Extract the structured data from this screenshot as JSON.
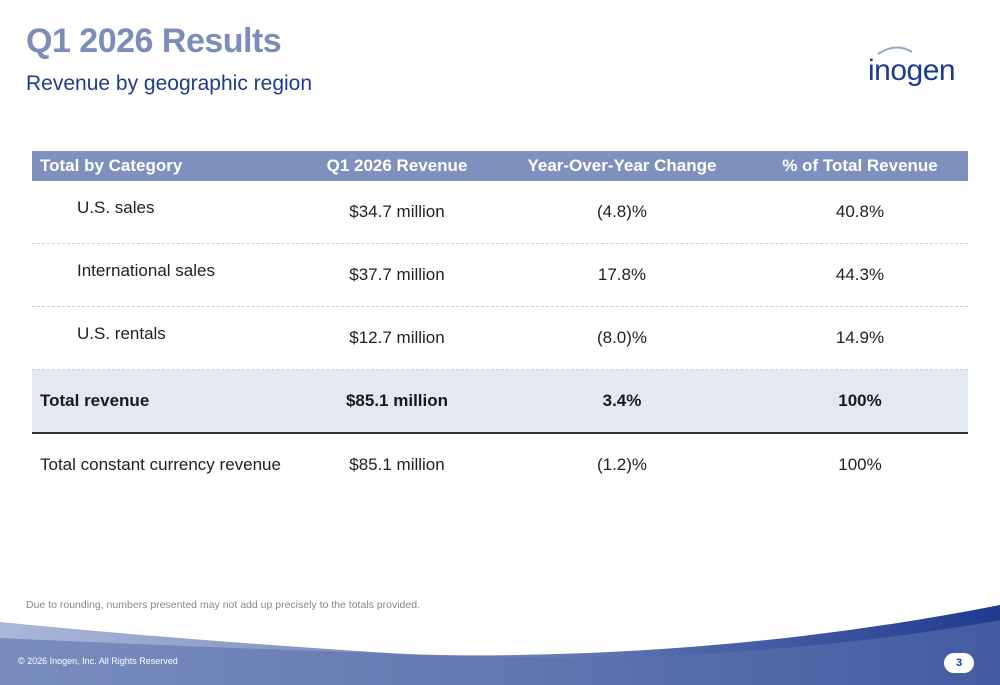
{
  "title": "Q1 2026 Results",
  "subtitle": "Revenue by geographic region",
  "logo_text": "inogen",
  "table": {
    "headers": [
      "Total by Category",
      "Q1 2026 Revenue",
      "Year-Over-Year Change",
      "% of Total Revenue"
    ],
    "rows": [
      {
        "category": "U.S. sales",
        "revenue": "$34.7 million",
        "yoy": "(4.8)%",
        "pct": "40.8%"
      },
      {
        "category": "International sales",
        "revenue": "$37.7 million",
        "yoy": "17.8%",
        "pct": "44.3%"
      },
      {
        "category": "U.S. rentals",
        "revenue": "$12.7 million",
        "yoy": "(8.0)%",
        "pct": "14.9%"
      }
    ],
    "total": {
      "category": "Total revenue",
      "revenue": "$85.1 million",
      "yoy": "3.4%",
      "pct": "100%"
    },
    "constant": {
      "category": "Total constant currency revenue",
      "revenue": "$85.1 million",
      "yoy": "(1.2)%",
      "pct": "100%"
    }
  },
  "footnote": "Due to rounding, numbers presented may not add up precisely to the totals provided.",
  "copyright": "© 2026 Inogen, Inc. All Rights Reserved",
  "page_number": "3",
  "colors": {
    "brand": "#1f3b8f",
    "header": "#7f90bf",
    "title": "#7b8db8",
    "total_bg": "#e4e8f1"
  }
}
